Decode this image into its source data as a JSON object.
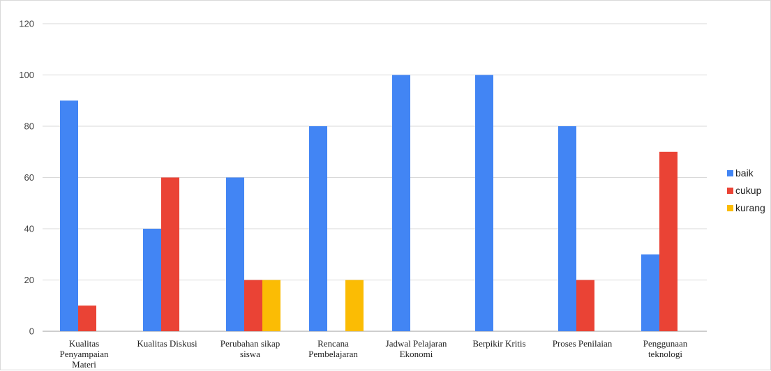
{
  "chart_data": {
    "type": "bar",
    "categories": [
      [
        "Kualitas",
        "Penyampaian",
        "Materi"
      ],
      [
        "Kualitas Diskusi"
      ],
      [
        "Perubahan sikap",
        "siswa"
      ],
      [
        "Rencana",
        "Pembelajaran"
      ],
      [
        "Jadwal Pelajaran",
        "Ekonomi"
      ],
      [
        "Berpikir Kritis"
      ],
      [
        "Proses Penilaian"
      ],
      [
        "Penggunaan",
        "teknologi"
      ]
    ],
    "series": [
      {
        "name": "baik",
        "color": "#4285f4",
        "values": [
          90,
          40,
          60,
          80,
          100,
          100,
          80,
          30
        ]
      },
      {
        "name": "cukup",
        "color": "#ea4335",
        "values": [
          10,
          60,
          20,
          0,
          0,
          0,
          20,
          70
        ]
      },
      {
        "name": "kurang",
        "color": "#fbbc04",
        "values": [
          0,
          0,
          20,
          20,
          0,
          0,
          0,
          0
        ]
      }
    ],
    "ylim": [
      0,
      120
    ],
    "yticks": [
      0,
      20,
      40,
      60,
      80,
      100,
      120
    ],
    "grid": true,
    "legend_position": "right"
  }
}
